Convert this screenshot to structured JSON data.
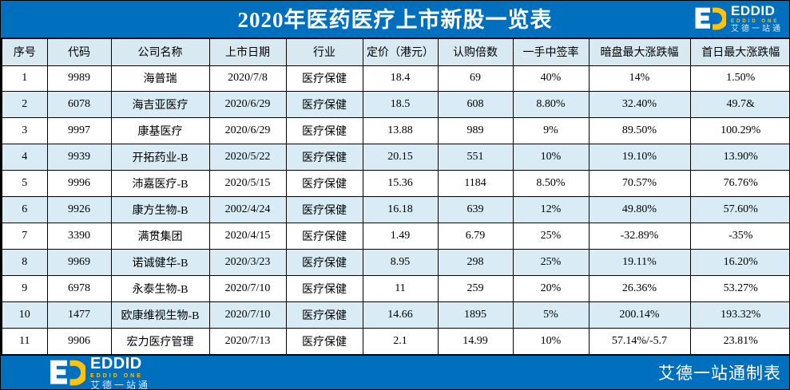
{
  "page": {
    "title": "2020年医药医疗上市新股一览表",
    "footer_note": "艾德一站通制表"
  },
  "logo": {
    "name": "EDDID",
    "subtitle_en": "EDDID ONE",
    "subtitle_cn": "艾德一站通"
  },
  "colors": {
    "bar_blue": "#0070BE",
    "header_row_bg": "#D8E9F2",
    "alt_row_bg": "#D9ECF5",
    "logo_yellow": "#FFC20E",
    "border_black": "#000000"
  },
  "table": {
    "headers": [
      "序号",
      "代码",
      "公司名称",
      "上市日期",
      "行业",
      "定价（港元）",
      "认购倍数",
      "一手中签率",
      "暗盘最大涨跌幅",
      "首日最大涨跌幅"
    ],
    "rows": [
      [
        "1",
        "9989",
        "海普瑞",
        "2020/7/8",
        "医疗保健",
        "18.4",
        "69",
        "40%",
        "14%",
        "1.50%"
      ],
      [
        "2",
        "6078",
        "海吉亚医疗",
        "2020/6/29",
        "医疗保健",
        "18.5",
        "608",
        "8.80%",
        "32.40%",
        "49.7&"
      ],
      [
        "3",
        "9997",
        "康基医疗",
        "2020/6/29",
        "医疗保健",
        "13.88",
        "989",
        "9%",
        "89.50%",
        "100.29%"
      ],
      [
        "4",
        "9939",
        "开拓药业-B",
        "2020/5/22",
        "医疗保健",
        "20.15",
        "551",
        "10%",
        "19.10%",
        "13.90%"
      ],
      [
        "5",
        "9996",
        "沛嘉医疗-B",
        "2020/5/15",
        "医疗保健",
        "15.36",
        "1184",
        "8.50%",
        "70.57%",
        "76.76%"
      ],
      [
        "6",
        "9926",
        "康方生物-B",
        "2002/4/24",
        "医疗保健",
        "16.18",
        "639",
        "12%",
        "49.80%",
        "57.60%"
      ],
      [
        "7",
        "3390",
        "满贯集团",
        "2020/4/15",
        "医疗保健",
        "1.49",
        "6.79",
        "25%",
        "-32.89%",
        "-35%"
      ],
      [
        "8",
        "9969",
        "诺诚健华-B",
        "2020/3/23",
        "医疗保健",
        "8.95",
        "298",
        "25%",
        "19.11%",
        "16.20%"
      ],
      [
        "9",
        "6978",
        "永泰生物-B",
        "2020/7/10",
        "医疗保健",
        "11",
        "259",
        "20%",
        "26.36%",
        "53.27%"
      ],
      [
        "10",
        "1477",
        "欧康维视生物-B",
        "2020/7/10",
        "医疗保健",
        "14.66",
        "1895",
        "5%",
        "200.14%",
        "193.32%"
      ],
      [
        "11",
        "9906",
        "宏力医疗管理",
        "2020/7/13",
        "医疗保健",
        "2.1",
        "14.99",
        "10%",
        "57.14%/-5.7",
        "23.81%"
      ]
    ]
  }
}
